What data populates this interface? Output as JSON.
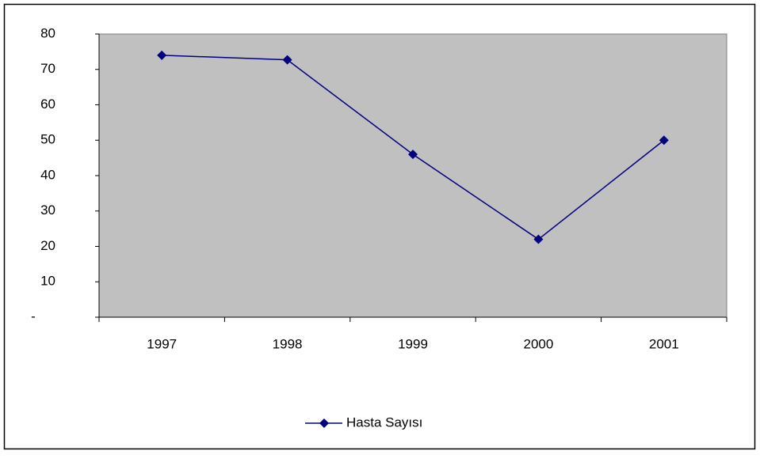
{
  "chart_data": {
    "type": "line",
    "categories": [
      "1997",
      "1998",
      "1999",
      "2000",
      "2001"
    ],
    "series": [
      {
        "name": "Hasta Sayısı",
        "color": "#000080",
        "values": [
          74,
          72.7,
          46,
          22,
          50
        ]
      }
    ],
    "ylim": [
      0,
      80
    ],
    "yticks": [
      {
        "value": 0,
        "label": "-"
      },
      10,
      20,
      30,
      40,
      50,
      60,
      70,
      80
    ],
    "plot_background": "#c0c0c0",
    "legend": "bottom"
  }
}
